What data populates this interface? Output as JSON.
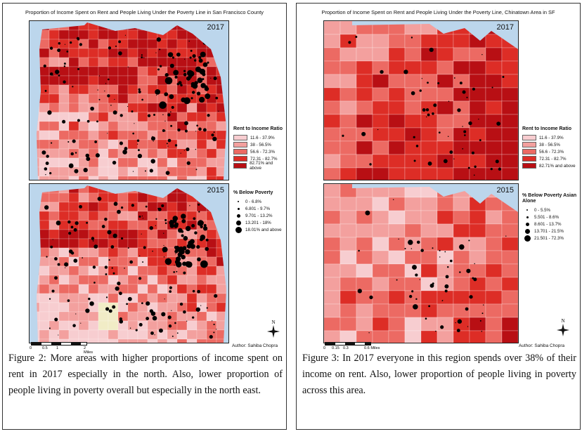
{
  "colors": {
    "water": "#bcd6ec",
    "class_1": "#f7cdd0",
    "class_2": "#f3a09e",
    "class_3": "#ec6a63",
    "class_4": "#dd2d26",
    "class_5": "#b80f14",
    "no_data": "#f1ecc6"
  },
  "figure2": {
    "title": "Proportion of Income Spent on Rent and People Living Under the Poverty Line in San Francisco County",
    "map_top_year": "2017",
    "map_bottom_year": "2015",
    "rent_legend": {
      "title": "Rent to Income Ratio",
      "classes": [
        "11.6 - 37.9%",
        "38 - 56.5%",
        "56.6 - 72.3%",
        "72.31 - 82.7%",
        "82.71% and above"
      ]
    },
    "poverty_legend": {
      "title": "% Below Poverty",
      "classes": [
        "0 - 6.8%",
        "6.801 - 9.7%",
        "9.701 - 13.2%",
        "13.201 - 18%",
        "18.01% and above"
      ]
    },
    "scale": {
      "ticks": [
        "0",
        "0.5",
        "1",
        "2 Miles"
      ]
    },
    "north": "N",
    "author": "Author: Sahiba Chopra",
    "caption": "Figure 2: More areas with higher proportions of income spent on rent in 2017 especially in the north. Also, lower proportion of people living in poverty overall but especially in the north east."
  },
  "figure3": {
    "title": "Proportion of Income Spent on Rent and People Living Under the Poverty Line, Chinatown Area in SF",
    "map_top_year": "2017",
    "map_bottom_year": "2015",
    "rent_legend": {
      "title": "Rent to Income Ratio",
      "classes": [
        "11.6 - 37.9%",
        "38 - 56.5%",
        "56.6 - 72.3%",
        "72.31 - 82.7%",
        "82.71% and above"
      ]
    },
    "poverty_legend": {
      "title": "% Below Poverty Asian Alone",
      "classes": [
        "0 - 5.5%",
        "5.501 - 8.6%",
        "8.601 - 13.7%",
        "13.701 - 21.5%",
        "21.501 - 72.3%"
      ]
    },
    "scale": {
      "ticks": [
        "0",
        "0.15",
        "0.3",
        "0.6 Miles"
      ]
    },
    "north": "N",
    "author": "Author: Sahiba Chopra",
    "caption": "Figure 3: In 2017 everyone in this region spends over 38% of their income on rent. Also, lower proportion of people living in poverty across this area."
  }
}
